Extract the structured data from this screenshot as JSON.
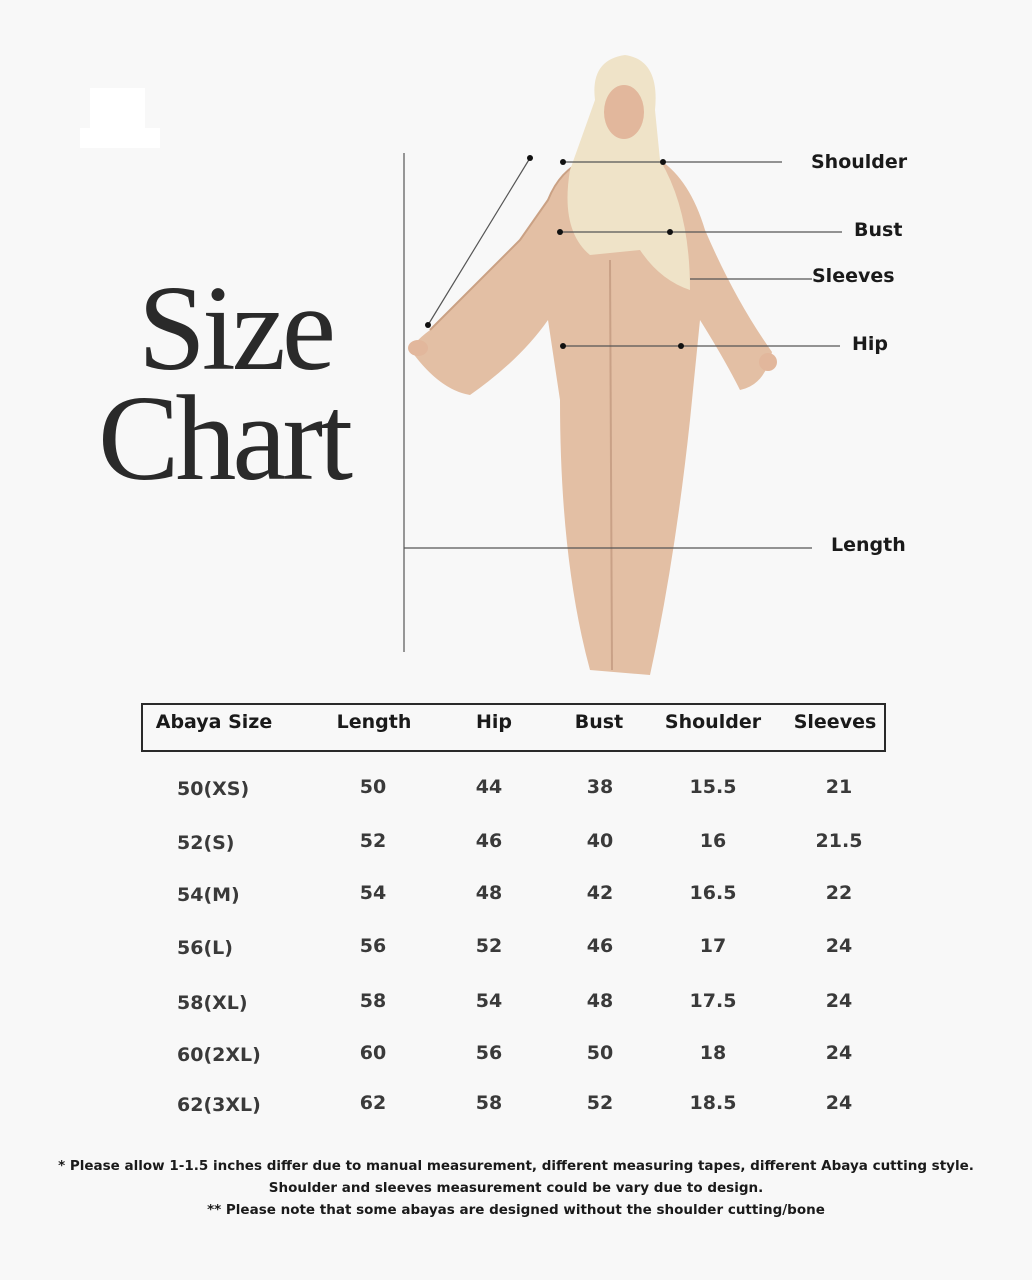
{
  "title": {
    "line1": "Size",
    "line2": "Chart"
  },
  "measure_labels": {
    "shoulder": "Shoulder",
    "bust": "Bust",
    "sleeves": "Sleeves",
    "hip": "Hip",
    "length": "Length"
  },
  "table": {
    "headers": [
      "Abaya Size",
      "Length",
      "Hip",
      "Bust",
      "Shoulder",
      "Sleeves"
    ],
    "rows": [
      [
        "50(XS)",
        "50",
        "44",
        "38",
        "15.5",
        "21"
      ],
      [
        "52(S)",
        "52",
        "46",
        "40",
        "16",
        "21.5"
      ],
      [
        "54(M)",
        "54",
        "48",
        "42",
        "16.5",
        "22"
      ],
      [
        "56(L)",
        "56",
        "52",
        "46",
        "17",
        "24"
      ],
      [
        "58(XL)",
        "58",
        "54",
        "48",
        "17.5",
        "24"
      ],
      [
        "60(2XL)",
        "60",
        "56",
        "50",
        "18",
        "24"
      ],
      [
        "62(3XL)",
        "62",
        "58",
        "52",
        "18.5",
        "24"
      ]
    ]
  },
  "notes": [
    "* Please allow 1-1.5 inches differ due to manual measurement, different measuring tapes, different Abaya cutting style.",
    "Shoulder and sleeves measurement could be vary due to design.",
    "** Please note that some abayas are designed without the shoulder cutting/bone"
  ],
  "colors": {
    "background": "#f8f8f8",
    "abaya": "#e3bfa4",
    "hijab": "#efe3c8",
    "text": "#1a1a1a"
  }
}
